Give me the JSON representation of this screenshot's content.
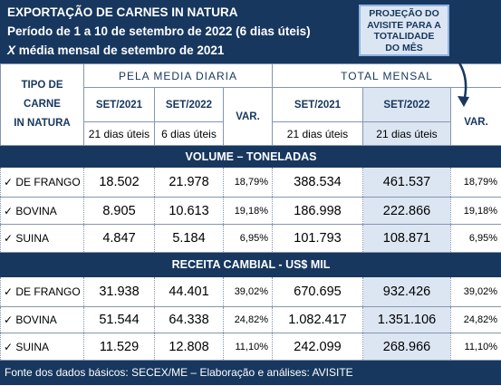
{
  "header": {
    "title": "EXPORTAÇÃO DE CARNES IN NATURA",
    "line2": "Período de 1 a 10 de setembro de 2022 (6 dias úteis)",
    "line3_symbol": "X",
    "line3": "média mensal de setembro de 2021"
  },
  "callout": {
    "lines": [
      "PROJEÇÃO DO",
      "AVISITE PARA A",
      "TOTALIDADE",
      "DO MÊS"
    ]
  },
  "table": {
    "row_header": [
      "TIPO DE",
      "CARNE",
      "IN NATURA"
    ],
    "groups": [
      "PELA MEDIA DIARIA",
      "TOTAL MENSAL"
    ],
    "columns": [
      "SET/2021",
      "SET/2022",
      "VAR.",
      "SET/2021",
      "SET/2022",
      "VAR."
    ],
    "days": [
      "21 dias úteis",
      "6 dias úteis",
      "21 dias úteis",
      "21 dias úteis"
    ],
    "sections": [
      {
        "title": "VOLUME – TONELADAS",
        "rows": [
          [
            "✓ DE FRANGO",
            "18.502",
            "21.978",
            "18,79%",
            "388.534",
            "461.537",
            "18,79%"
          ],
          [
            "✓ BOVINA",
            "8.905",
            "10.613",
            "19,18%",
            "186.998",
            "222.866",
            "19,18%"
          ],
          [
            "✓ SUINA",
            "4.847",
            "5.184",
            "6,95%",
            "101.793",
            "108.871",
            "6,95%"
          ]
        ]
      },
      {
        "title": "RECEITA CAMBIAL - US$ MIL",
        "rows": [
          [
            "✓ DE FRANGO",
            "31.938",
            "44.401",
            "39,02%",
            "670.695",
            "932.426",
            "39,02%"
          ],
          [
            "✓ BOVINA",
            "51.544",
            "64.338",
            "24,82%",
            "1.082.417",
            "1.351.106",
            "24,82%"
          ],
          [
            "✓ SUINA",
            "11.529",
            "12.808",
            "11,10%",
            "242.099",
            "268.966",
            "11,10%"
          ]
        ]
      }
    ]
  },
  "footer": "Fonte dos dados básicos: SECEX/ME – Elaboração e análises: AVISITE"
}
